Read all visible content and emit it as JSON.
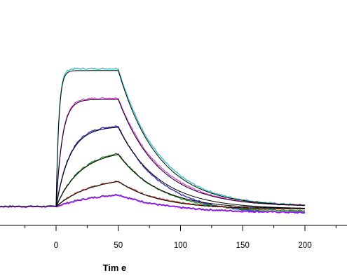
{
  "chart_data": {
    "type": "line",
    "title": "",
    "xlabel": "Tim e",
    "ylabel": "",
    "xlim": [
      -80,
      225
    ],
    "ylim": [
      -8,
      73
    ],
    "xticks": [
      0,
      50,
      100,
      150,
      200
    ],
    "xtick_labels": [
      "0",
      "50",
      "100",
      "150",
      "200"
    ],
    "minor_xticks": [
      -75,
      -50,
      -25,
      25,
      75,
      125,
      175,
      225
    ],
    "grid": false,
    "legend": "none",
    "baseline_y": 0,
    "association_end_x": 50,
    "dissociation_end_x": 200,
    "series": [
      {
        "color": "#3fc1c1",
        "kobs": 0.45,
        "plateau": 56.0,
        "koff": 0.03,
        "residual": 0.0
      },
      {
        "color": "#d64bd6",
        "kobs": 0.2,
        "plateau": 44.0,
        "koff": 0.03,
        "residual": 0.0
      },
      {
        "color": "#2e2eb0",
        "kobs": 0.09,
        "plateau": 33.0,
        "koff": 0.03,
        "residual": -3.0
      },
      {
        "color": "#1f7a1f",
        "kobs": 0.05,
        "plateau": 23.5,
        "koff": 0.03,
        "residual": -2.0
      },
      {
        "color": "#b5442b",
        "kobs": 0.035,
        "plateau": 12.5,
        "koff": 0.03,
        "residual": -1.0
      },
      {
        "color": "#8a1fe0",
        "kobs": 0.027,
        "plateau": 6.5,
        "koff": 0.025,
        "residual": -2.5
      }
    ],
    "fit": {
      "color": "#000000",
      "curves": [
        {
          "kobs": 0.45,
          "plateau": 55.2,
          "koff": 0.031,
          "residual": 0.0
        },
        {
          "kobs": 0.2,
          "plateau": 43.5,
          "koff": 0.031,
          "residual": 0.0
        },
        {
          "kobs": 0.09,
          "plateau": 32.5,
          "koff": 0.031,
          "residual": -1.0
        },
        {
          "kobs": 0.05,
          "plateau": 23.0,
          "koff": 0.031,
          "residual": -1.0
        },
        {
          "kobs": 0.035,
          "plateau": 12.3,
          "koff": 0.031,
          "residual": -1.0
        }
      ]
    }
  }
}
